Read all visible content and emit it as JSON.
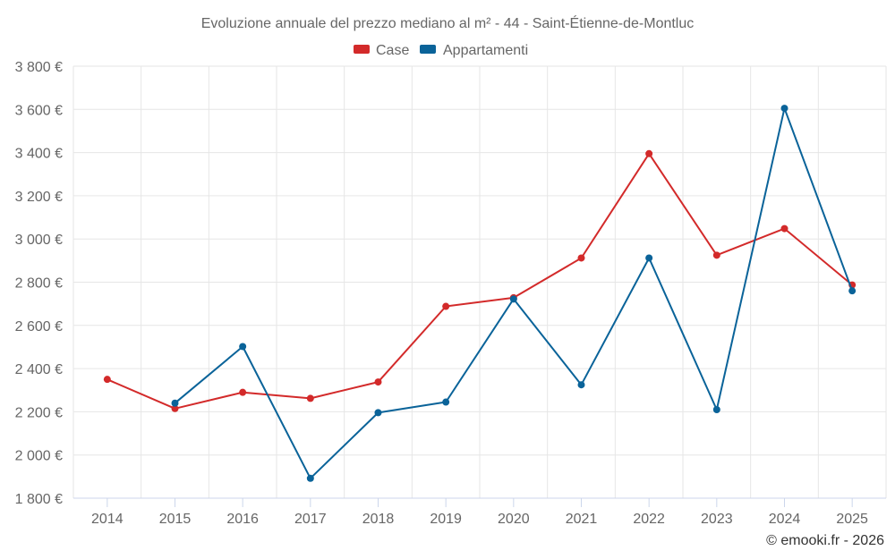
{
  "chart_data": {
    "type": "line",
    "title": "Evoluzione annuale del prezzo mediano al m² - 44 - Saint-Étienne-de-Montluc",
    "categories": [
      "2014",
      "2015",
      "2016",
      "2017",
      "2018",
      "2019",
      "2020",
      "2021",
      "2022",
      "2023",
      "2024",
      "2025"
    ],
    "series": [
      {
        "name": "Case",
        "color": "#d32a2a",
        "values": [
          2350,
          2215,
          2290,
          2262,
          2338,
          2688,
          2728,
          2912,
          3395,
          2925,
          3048,
          2787
        ]
      },
      {
        "name": "Appartamenti",
        "color": "#0a6399",
        "values": [
          null,
          2240,
          2502,
          1892,
          2196,
          2245,
          2722,
          2325,
          2912,
          2210,
          3605,
          2760
        ]
      }
    ],
    "ylim": [
      1800,
      3800
    ],
    "yticks": [
      1800,
      2000,
      2200,
      2400,
      2600,
      2800,
      3000,
      3200,
      3400,
      3600,
      3800
    ],
    "ytick_labels": [
      "1 800 €",
      "2 000 €",
      "2 200 €",
      "2 400 €",
      "2 600 €",
      "2 800 €",
      "3 000 €",
      "3 200 €",
      "3 400 €",
      "3 600 €",
      "3 800 €"
    ],
    "grid": true,
    "legend_position": "top-center"
  },
  "credit": "© emooki.fr - 2026"
}
